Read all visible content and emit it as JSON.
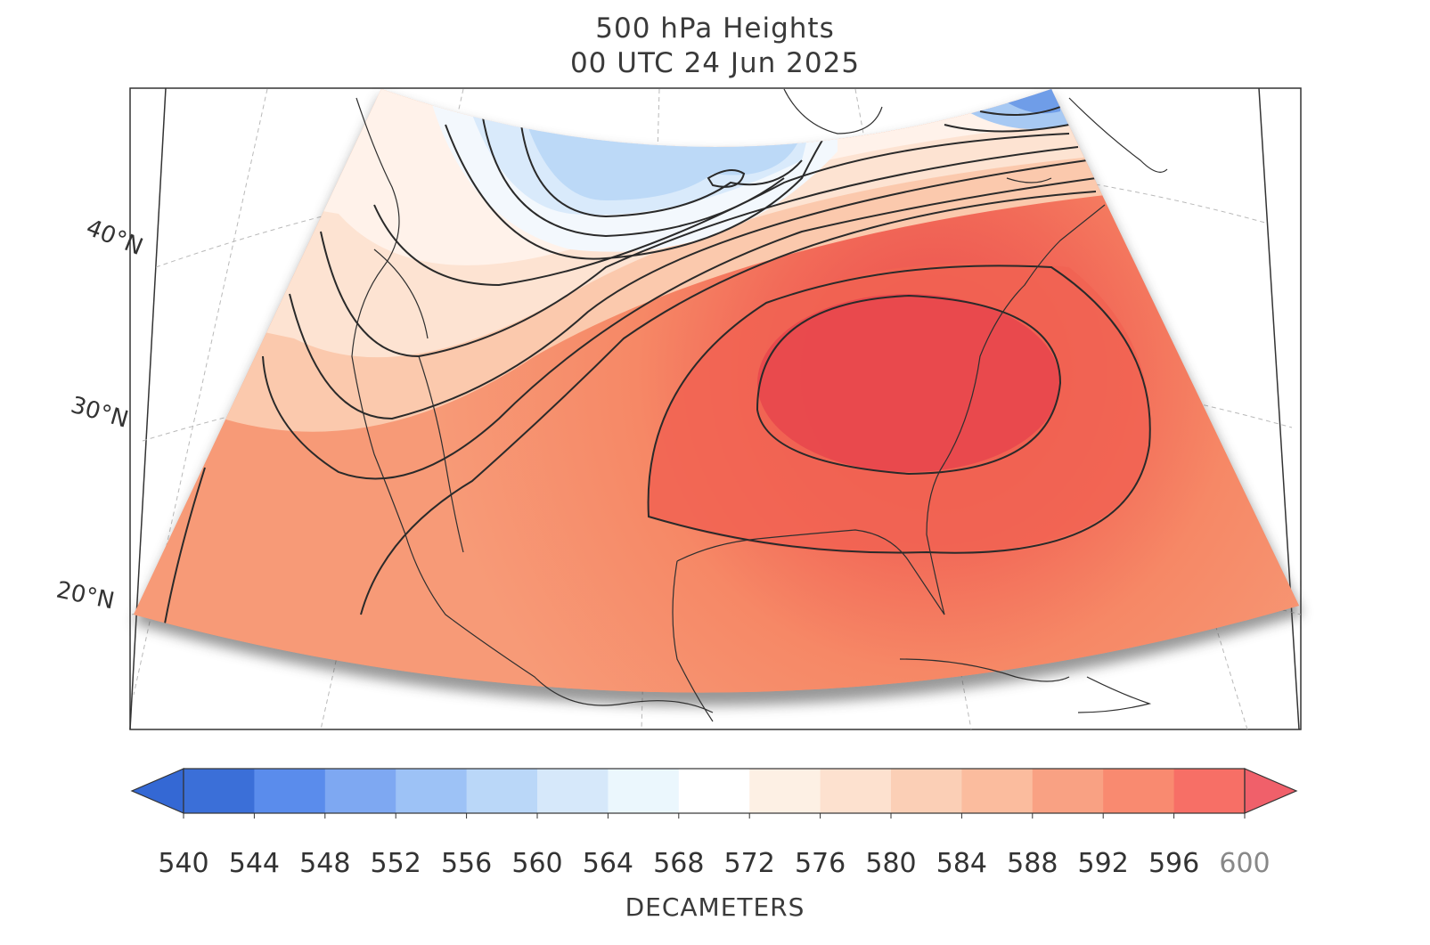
{
  "title": {
    "line1": "500 hPa Heights",
    "line2": "00 UTC  24 Jun 2025"
  },
  "lat_labels": [
    "40°N",
    "30°N",
    "20°N"
  ],
  "colorbar": {
    "title": "DECAMETERS",
    "ticks": [
      "540",
      "544",
      "548",
      "552",
      "556",
      "560",
      "564",
      "568",
      "572",
      "576",
      "580",
      "584",
      "588",
      "592",
      "596",
      "600"
    ],
    "colors": [
      "#3b6fd8",
      "#5a8cec",
      "#7ea8f2",
      "#9dc2f6",
      "#bad7f8",
      "#d6e8fa",
      "#ebf7fd",
      "#ffffff",
      "#fdf0e4",
      "#fde1cf",
      "#fbcfb6",
      "#fbbc9e",
      "#f9a183",
      "#f98a70",
      "#f76f66"
    ],
    "extend_low_color": "#3468d4",
    "extend_high_color": "#f0606a"
  },
  "map": {
    "contour_interval": 4,
    "units": "dam"
  }
}
